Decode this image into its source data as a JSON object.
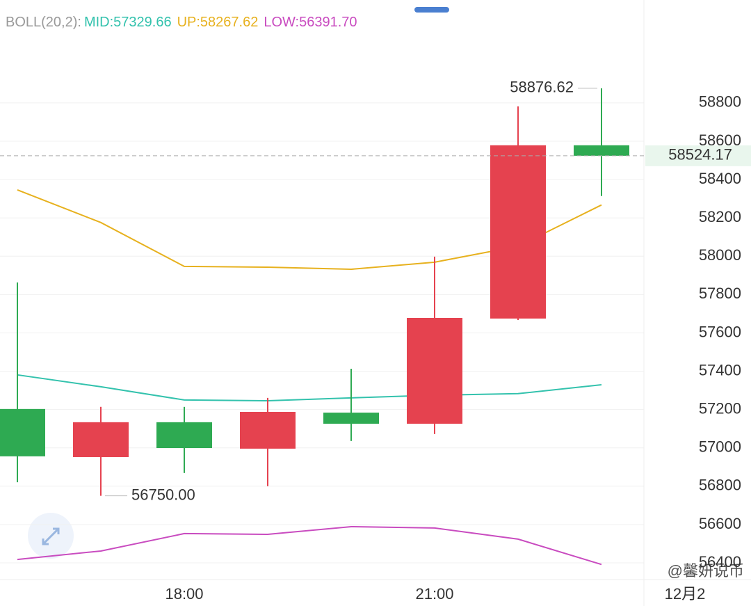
{
  "chart_data": {
    "type": "candlestick",
    "header": {
      "indicator": "BOLL(20,2):",
      "mid": "MID:57329.66",
      "up": "UP:58267.62",
      "low": "LOW:56391.70"
    },
    "categories": [
      null,
      null,
      "18:00",
      null,
      null,
      "21:00",
      null,
      null
    ],
    "next_label": "12月2",
    "open": [
      57203,
      56952,
      57134,
      56996,
      57184,
      57126,
      57675,
      58579
    ],
    "high": [
      57863,
      57214,
      57214,
      57261,
      57413,
      57998,
      58782,
      58876.62
    ],
    "low": [
      56821,
      56750,
      56869,
      56800,
      57036,
      57072,
      57667,
      58314
    ],
    "close": [
      56956,
      57134,
      56999,
      57188,
      57126,
      57678,
      58579,
      58524.17
    ],
    "up_color": "#e5424f",
    "down_color": "#2eaa52",
    "series": [
      {
        "name": "MID",
        "color": "#33c2ad",
        "values": [
          57381,
          57319,
          57250,
          57246,
          57261,
          57275,
          57283,
          57329.66
        ]
      },
      {
        "name": "UP",
        "color": "#e7b11e",
        "values": [
          58346,
          58176,
          57947,
          57943,
          57932,
          57969,
          58052,
          58267.62
        ]
      },
      {
        "name": "LOW",
        "color": "#c94cc0",
        "values": [
          56418,
          56462,
          56553,
          56549,
          56589,
          56582,
          56524,
          56391.7
        ]
      }
    ],
    "annotations": [
      {
        "text": "58876.62",
        "index": 7,
        "value": 58876.62,
        "side": "left"
      },
      {
        "text": "56750.00",
        "index": 1,
        "value": 56750,
        "side": "right"
      }
    ],
    "ylim": [
      56313,
      59337
    ],
    "yticks": [
      56400,
      56600,
      56800,
      57000,
      57200,
      57400,
      57600,
      57800,
      58000,
      58200,
      58400,
      58600,
      58800
    ],
    "grid": true,
    "watermark": "@馨妍说币"
  }
}
